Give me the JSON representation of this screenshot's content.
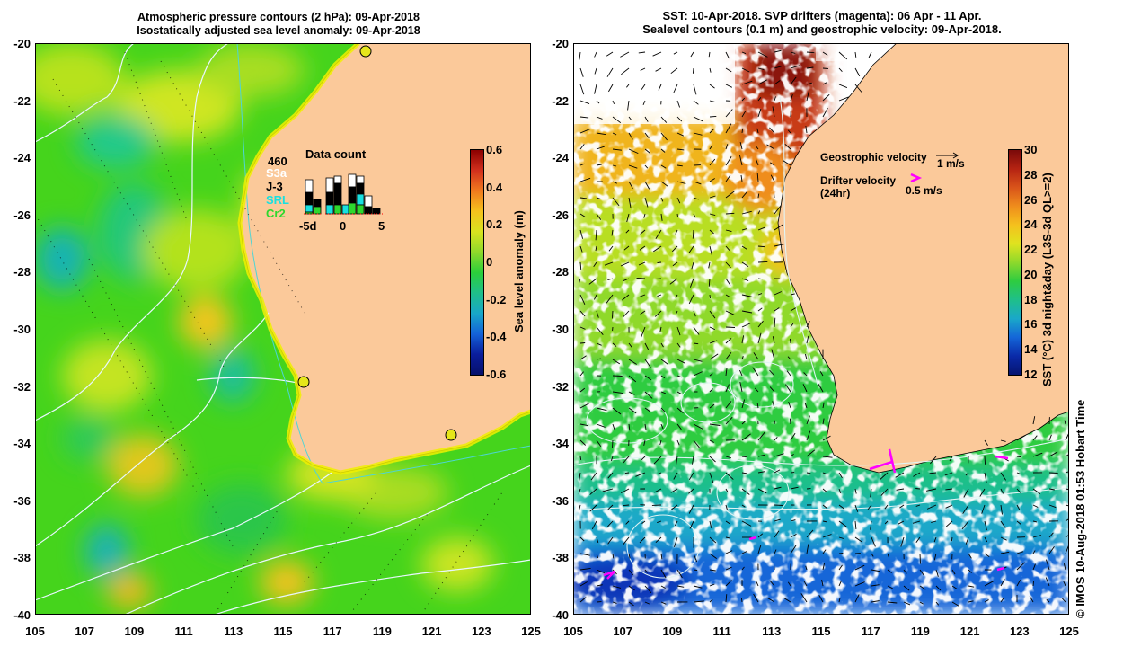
{
  "left_panel": {
    "title_line1": "Atmospheric pressure contours (2 hPa): 09-Apr-2018",
    "title_line2": "Isostatically adjusted sea level anomaly: 09-Apr-2018",
    "y_ticks": [
      "-20",
      "-22",
      "-24",
      "-26",
      "-28",
      "-30",
      "-32",
      "-34",
      "-36",
      "-38",
      "-40"
    ],
    "x_ticks": [
      "105",
      "107",
      "109",
      "111",
      "113",
      "115",
      "117",
      "119",
      "121",
      "123",
      "125"
    ],
    "colorbar": {
      "label": "Sea level anomaly (m)",
      "ticks": [
        "0.6",
        "0.4",
        "0.2",
        "0",
        "-0.2",
        "-0.4",
        "-0.6"
      ],
      "colors": [
        "#8b0000",
        "#d2301d",
        "#f07a1e",
        "#f5c21d",
        "#d8e31f",
        "#8fd92b",
        "#2bcf3a",
        "#1fbf8a",
        "#18a7c9",
        "#1463d9",
        "#0a1d9c",
        "#06106b"
      ]
    },
    "data_count": {
      "title": "Data count",
      "total": "460",
      "satellites": [
        {
          "name": "S3a",
          "color": "#ffffff"
        },
        {
          "name": "J-3",
          "color": "#000000"
        },
        {
          "name": "SRL",
          "color": "#19e0e0"
        },
        {
          "name": "Cr2",
          "color": "#2ed82e"
        }
      ],
      "axis_ticks": [
        "-5d",
        "0",
        "5"
      ]
    }
  },
  "right_panel": {
    "title_line1": "SST: 10-Apr-2018. SVP drifters (magenta): 06 Apr - 11 Apr.",
    "title_line2": "Sealevel contours (0.1 m) and geostrophic velocity: 09-Apr-2018.",
    "y_ticks": [
      "-20",
      "-22",
      "-24",
      "-26",
      "-28",
      "-30",
      "-32",
      "-34",
      "-36",
      "-38",
      "-40"
    ],
    "x_ticks": [
      "105",
      "107",
      "109",
      "111",
      "113",
      "115",
      "117",
      "119",
      "121",
      "123",
      "125"
    ],
    "colorbar": {
      "label": "SST (°C) 3d night&day (L3S-3d QL>=2)",
      "ticks": [
        "30",
        "28",
        "26",
        "24",
        "22",
        "20",
        "18",
        "16",
        "14",
        "12"
      ],
      "colors": [
        "#7a0a0a",
        "#b52312",
        "#d9541a",
        "#ef8d1c",
        "#f5c11d",
        "#dfe31f",
        "#8fd92b",
        "#2ecc40",
        "#1fbf8a",
        "#1aa8c9",
        "#1466d8",
        "#0a2aa8",
        "#061470"
      ]
    },
    "geo_velocity_label": "Geostrophic velocity",
    "geo_velocity_scale": "1 m/s",
    "drifter_label_line1": "Drifter velocity",
    "drifter_label_line2": "(24hr)",
    "drifter_scale": "0.5 m/s",
    "drifter_color": "#ff00ff"
  },
  "credit": "© IMOS 10-Aug-2018 01:53 Hobart Time",
  "colors": {
    "land": "#fbc99a",
    "ocean_green": "#39d11f",
    "no_data": "#ffffff"
  }
}
